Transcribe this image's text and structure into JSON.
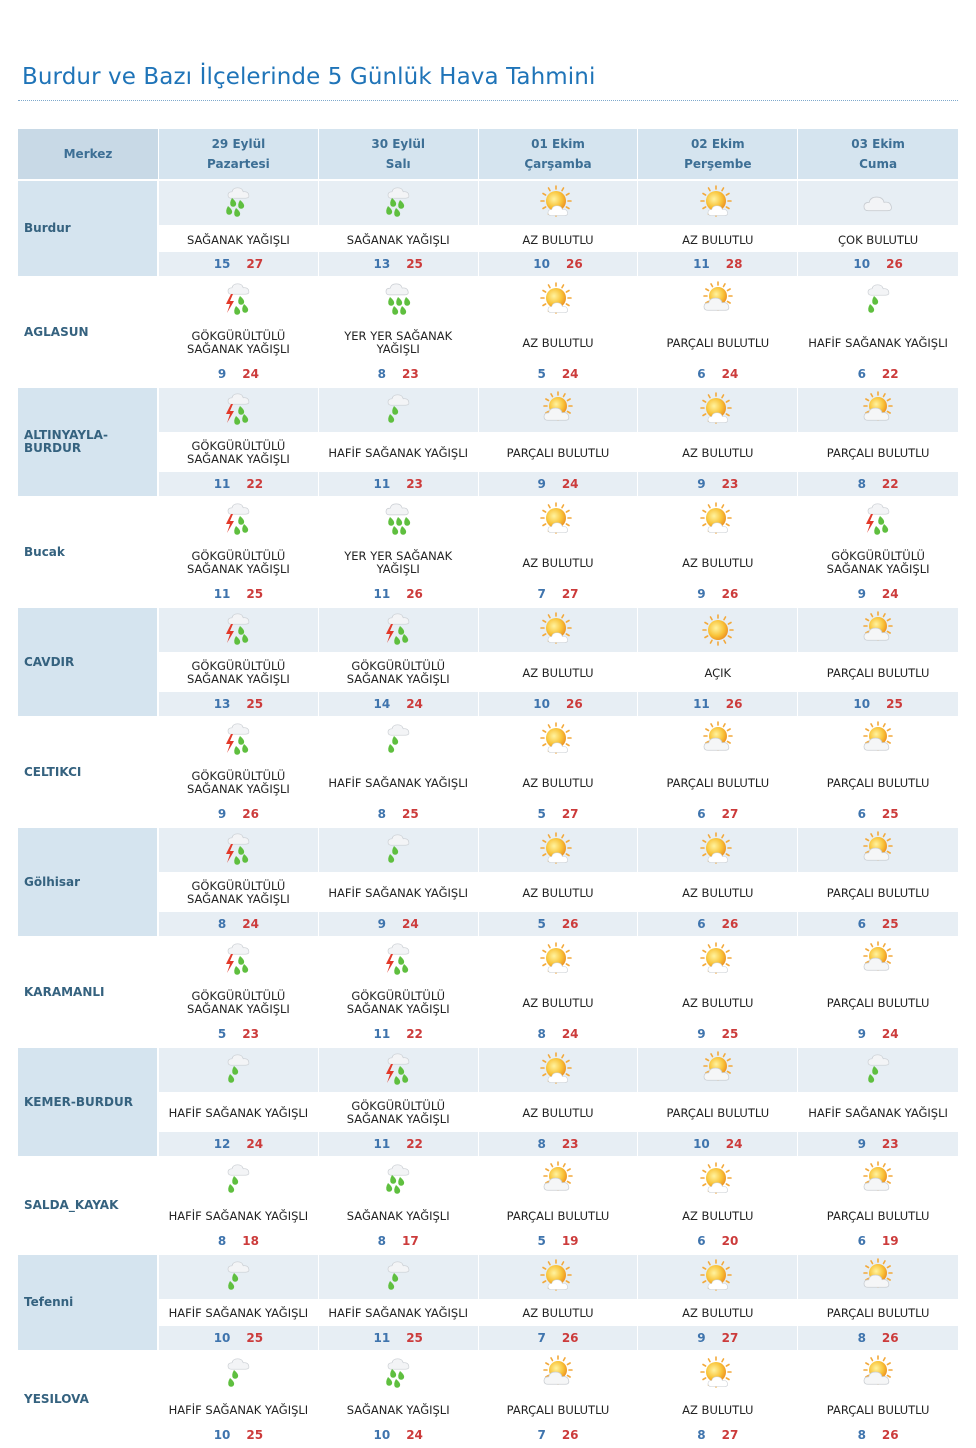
{
  "title": "Burdur ve Bazı İlçelerinde 5 Günlük Hava Tahmini",
  "header": {
    "first": "Merkez",
    "days": [
      {
        "date": "29 Eylül",
        "weekday": "Pazartesi"
      },
      {
        "date": "30 Eylül",
        "weekday": "Salı"
      },
      {
        "date": "01 Ekim",
        "weekday": "Çarşamba"
      },
      {
        "date": "02 Ekim",
        "weekday": "Perşembe"
      },
      {
        "date": "03 Ekim",
        "weekday": "Cuma"
      }
    ]
  },
  "colors": {
    "title": "#1f74b8",
    "min_temp": "#3f74ad",
    "max_temp": "#cc3b3b",
    "band": "#d5e4ef"
  },
  "rows": [
    {
      "name": "Burdur",
      "days": [
        {
          "icon": "heavy-rain-icon",
          "desc": "SAĞANAK YAĞIŞLI",
          "min": "15",
          "max": "27"
        },
        {
          "icon": "heavy-rain-icon",
          "desc": "SAĞANAK YAĞIŞLI",
          "min": "13",
          "max": "25"
        },
        {
          "icon": "partly-sunny-icon",
          "desc": "AZ BULUTLU",
          "min": "10",
          "max": "26"
        },
        {
          "icon": "partly-sunny-icon",
          "desc": "AZ BULUTLU",
          "min": "11",
          "max": "28"
        },
        {
          "icon": "cloudy-icon",
          "desc": "ÇOK BULUTLU",
          "min": "10",
          "max": "26"
        }
      ]
    },
    {
      "name": "AGLASUN",
      "days": [
        {
          "icon": "thunder-rain-icon",
          "desc": "GÖKGÜRÜLTÜLÜ SAĞANAK YAĞIŞLI",
          "min": "9",
          "max": "24"
        },
        {
          "icon": "scattered-rain-icon",
          "desc": "YER YER SAĞANAK YAĞIŞLI",
          "min": "8",
          "max": "23"
        },
        {
          "icon": "partly-sunny-icon",
          "desc": "AZ BULUTLU",
          "min": "5",
          "max": "24"
        },
        {
          "icon": "mostly-cloudy-sun-icon",
          "desc": "PARÇALI BULUTLU",
          "min": "6",
          "max": "24"
        },
        {
          "icon": "light-rain-icon",
          "desc": "HAFİF SAĞANAK YAĞIŞLI",
          "min": "6",
          "max": "22"
        }
      ]
    },
    {
      "name": "ALTINYAYLA-BURDUR",
      "days": [
        {
          "icon": "thunder-rain-icon",
          "desc": "GÖKGÜRÜLTÜLÜ SAĞANAK YAĞIŞLI",
          "min": "11",
          "max": "22"
        },
        {
          "icon": "light-rain-icon",
          "desc": "HAFİF SAĞANAK YAĞIŞLI",
          "min": "11",
          "max": "23"
        },
        {
          "icon": "mostly-cloudy-sun-icon",
          "desc": "PARÇALI BULUTLU",
          "min": "9",
          "max": "24"
        },
        {
          "icon": "partly-sunny-icon",
          "desc": "AZ BULUTLU",
          "min": "9",
          "max": "23"
        },
        {
          "icon": "mostly-cloudy-sun-icon",
          "desc": "PARÇALI BULUTLU",
          "min": "8",
          "max": "22"
        }
      ]
    },
    {
      "name": "Bucak",
      "days": [
        {
          "icon": "thunder-rain-icon",
          "desc": "GÖKGÜRÜLTÜLÜ SAĞANAK YAĞIŞLI",
          "min": "11",
          "max": "25"
        },
        {
          "icon": "scattered-rain-icon",
          "desc": "YER YER SAĞANAK YAĞIŞLI",
          "min": "11",
          "max": "26"
        },
        {
          "icon": "partly-sunny-icon",
          "desc": "AZ BULUTLU",
          "min": "7",
          "max": "27"
        },
        {
          "icon": "partly-sunny-icon",
          "desc": "AZ BULUTLU",
          "min": "9",
          "max": "26"
        },
        {
          "icon": "thunder-rain-icon",
          "desc": "GÖKGÜRÜLTÜLÜ SAĞANAK YAĞIŞLI",
          "min": "9",
          "max": "24"
        }
      ]
    },
    {
      "name": "CAVDIR",
      "days": [
        {
          "icon": "thunder-rain-icon",
          "desc": "GÖKGÜRÜLTÜLÜ SAĞANAK YAĞIŞLI",
          "min": "13",
          "max": "25"
        },
        {
          "icon": "thunder-rain-icon",
          "desc": "GÖKGÜRÜLTÜLÜ SAĞANAK YAĞIŞLI",
          "min": "14",
          "max": "24"
        },
        {
          "icon": "partly-sunny-icon",
          "desc": "AZ BULUTLU",
          "min": "10",
          "max": "26"
        },
        {
          "icon": "sun-icon",
          "desc": "AÇIK",
          "min": "11",
          "max": "26"
        },
        {
          "icon": "mostly-cloudy-sun-icon",
          "desc": "PARÇALI BULUTLU",
          "min": "10",
          "max": "25"
        }
      ]
    },
    {
      "name": "CELTIKCI",
      "days": [
        {
          "icon": "thunder-rain-icon",
          "desc": "GÖKGÜRÜLTÜLÜ SAĞANAK YAĞIŞLI",
          "min": "9",
          "max": "26"
        },
        {
          "icon": "light-rain-icon",
          "desc": "HAFİF SAĞANAK YAĞIŞLI",
          "min": "8",
          "max": "25"
        },
        {
          "icon": "partly-sunny-icon",
          "desc": "AZ BULUTLU",
          "min": "5",
          "max": "27"
        },
        {
          "icon": "mostly-cloudy-sun-icon",
          "desc": "PARÇALI BULUTLU",
          "min": "6",
          "max": "27"
        },
        {
          "icon": "mostly-cloudy-sun-icon",
          "desc": "PARÇALI BULUTLU",
          "min": "6",
          "max": "25"
        }
      ]
    },
    {
      "name": "Gölhisar",
      "days": [
        {
          "icon": "thunder-rain-icon",
          "desc": "GÖKGÜRÜLTÜLÜ SAĞANAK YAĞIŞLI",
          "min": "8",
          "max": "24"
        },
        {
          "icon": "light-rain-icon",
          "desc": "HAFİF SAĞANAK YAĞIŞLI",
          "min": "9",
          "max": "24"
        },
        {
          "icon": "partly-sunny-icon",
          "desc": "AZ BULUTLU",
          "min": "5",
          "max": "26"
        },
        {
          "icon": "partly-sunny-icon",
          "desc": "AZ BULUTLU",
          "min": "6",
          "max": "26"
        },
        {
          "icon": "mostly-cloudy-sun-icon",
          "desc": "PARÇALI BULUTLU",
          "min": "6",
          "max": "25"
        }
      ]
    },
    {
      "name": "KARAMANLI",
      "days": [
        {
          "icon": "thunder-rain-icon",
          "desc": "GÖKGÜRÜLTÜLÜ SAĞANAK YAĞIŞLI",
          "min": "5",
          "max": "23"
        },
        {
          "icon": "thunder-rain-icon",
          "desc": "GÖKGÜRÜLTÜLÜ SAĞANAK YAĞIŞLI",
          "min": "11",
          "max": "22"
        },
        {
          "icon": "partly-sunny-icon",
          "desc": "AZ BULUTLU",
          "min": "8",
          "max": "24"
        },
        {
          "icon": "partly-sunny-icon",
          "desc": "AZ BULUTLU",
          "min": "9",
          "max": "25"
        },
        {
          "icon": "mostly-cloudy-sun-icon",
          "desc": "PARÇALI BULUTLU",
          "min": "9",
          "max": "24"
        }
      ]
    },
    {
      "name": "KEMER-BURDUR",
      "days": [
        {
          "icon": "light-rain-icon",
          "desc": "HAFİF SAĞANAK YAĞIŞLI",
          "min": "12",
          "max": "24"
        },
        {
          "icon": "thunder-rain-icon",
          "desc": "GÖKGÜRÜLTÜLÜ SAĞANAK YAĞIŞLI",
          "min": "11",
          "max": "22"
        },
        {
          "icon": "partly-sunny-icon",
          "desc": "AZ BULUTLU",
          "min": "8",
          "max": "23"
        },
        {
          "icon": "mostly-cloudy-sun-icon",
          "desc": "PARÇALI BULUTLU",
          "min": "10",
          "max": "24"
        },
        {
          "icon": "light-rain-icon",
          "desc": "HAFİF SAĞANAK YAĞIŞLI",
          "min": "9",
          "max": "23"
        }
      ]
    },
    {
      "name": "SALDA_KAYAK",
      "days": [
        {
          "icon": "light-rain-icon",
          "desc": "HAFİF SAĞANAK YAĞIŞLI",
          "min": "8",
          "max": "18"
        },
        {
          "icon": "heavy-rain-icon",
          "desc": "SAĞANAK YAĞIŞLI",
          "min": "8",
          "max": "17"
        },
        {
          "icon": "mostly-cloudy-sun-icon",
          "desc": "PARÇALI BULUTLU",
          "min": "5",
          "max": "19"
        },
        {
          "icon": "partly-sunny-icon",
          "desc": "AZ BULUTLU",
          "min": "6",
          "max": "20"
        },
        {
          "icon": "mostly-cloudy-sun-icon",
          "desc": "PARÇALI BULUTLU",
          "min": "6",
          "max": "19"
        }
      ]
    },
    {
      "name": "Tefenni",
      "days": [
        {
          "icon": "light-rain-icon",
          "desc": "HAFİF SAĞANAK YAĞIŞLI",
          "min": "10",
          "max": "25"
        },
        {
          "icon": "light-rain-icon",
          "desc": "HAFİF SAĞANAK YAĞIŞLI",
          "min": "11",
          "max": "25"
        },
        {
          "icon": "partly-sunny-icon",
          "desc": "AZ BULUTLU",
          "min": "7",
          "max": "26"
        },
        {
          "icon": "partly-sunny-icon",
          "desc": "AZ BULUTLU",
          "min": "9",
          "max": "27"
        },
        {
          "icon": "mostly-cloudy-sun-icon",
          "desc": "PARÇALI BULUTLU",
          "min": "8",
          "max": "26"
        }
      ]
    },
    {
      "name": "YESILOVA",
      "days": [
        {
          "icon": "light-rain-icon",
          "desc": "HAFİF SAĞANAK YAĞIŞLI",
          "min": "10",
          "max": "25"
        },
        {
          "icon": "heavy-rain-icon",
          "desc": "SAĞANAK YAĞIŞLI",
          "min": "10",
          "max": "24"
        },
        {
          "icon": "mostly-cloudy-sun-icon",
          "desc": "PARÇALI BULUTLU",
          "min": "7",
          "max": "26"
        },
        {
          "icon": "partly-sunny-icon",
          "desc": "AZ BULUTLU",
          "min": "8",
          "max": "27"
        },
        {
          "icon": "mostly-cloudy-sun-icon",
          "desc": "PARÇALI BULUTLU",
          "min": "8",
          "max": "26"
        }
      ]
    }
  ]
}
